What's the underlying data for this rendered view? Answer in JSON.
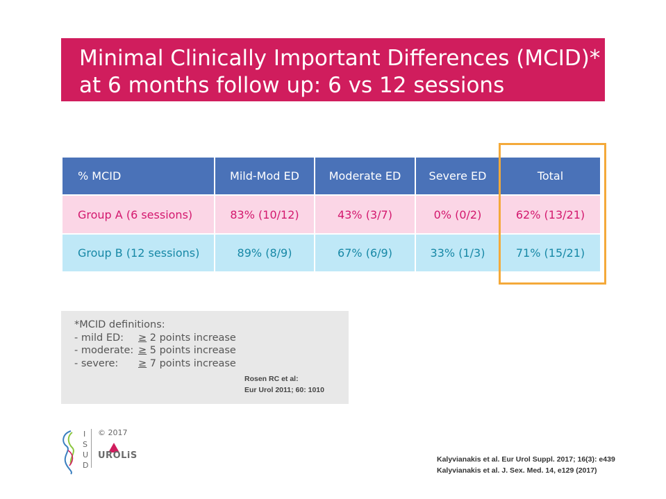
{
  "title": {
    "line1": "Minimal Clinically Important Differences (MCID)*",
    "line2": "at 6 months follow up: 6 vs 12 sessions"
  },
  "table": {
    "headers": [
      "% MCID",
      "Mild-Mod ED",
      "Moderate ED",
      "Severe ED",
      "Total"
    ],
    "rows": [
      [
        "Group A (6 sessions)",
        "83% (10/12)",
        "43% (3/7)",
        "0% (0/2)",
        "62% (13/21)"
      ],
      [
        "Group B (12 sessions)",
        "89% (8/9)",
        "67% (6/9)",
        "33% (1/3)",
        "71% (15/21)"
      ]
    ]
  },
  "note": {
    "heading": "*MCID definitions:",
    "items": [
      {
        "term": "- mild ED:",
        "ge": "≥",
        "rest": " 2 points increase"
      },
      {
        "term": "- moderate:",
        "ge": "≥",
        "rest": " 5 points increase"
      },
      {
        "term": "- severe:",
        "ge": "≥",
        "rest": " 7 points increase"
      }
    ],
    "reference_line1": "Rosen RC et al:",
    "reference_line2": "Eur Urol 2011; 60: 1010"
  },
  "footer": {
    "isud_letters": [
      "I",
      "S",
      "U",
      "D"
    ],
    "copyright": "© 2017",
    "urolis": "UROLiS",
    "citations": [
      "Kalyvianakis et al. Eur Urol Suppl. 2017; 16(3): e439",
      "Kalyvianakis et al. J. Sex. Med. 14, e129 (2017)"
    ]
  },
  "colors": {
    "title_bg": "#d01d5d",
    "header_bg": "#4a72b8",
    "group_a_bg": "#fbd6e6",
    "group_a_text": "#d3186e",
    "group_b_bg": "#bfe8f7",
    "group_b_text": "#1788a6",
    "highlight": "#f4a93a",
    "note_bg": "#e8e8e8"
  }
}
